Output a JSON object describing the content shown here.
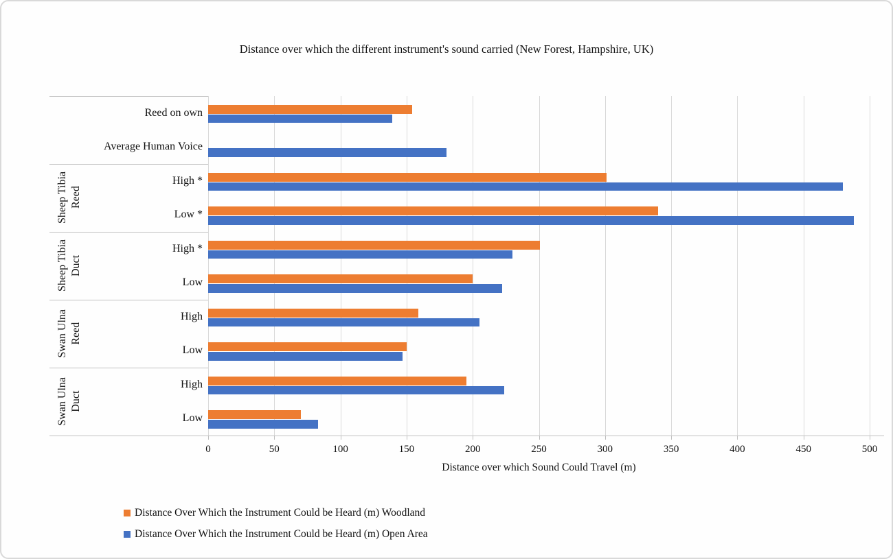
{
  "colors": {
    "woodland": "#ED7D31",
    "open_area": "#4472C4",
    "gridline": "#D9D9D9",
    "axis_line": "#BFBFBF",
    "text": "#111111"
  },
  "chart_data": {
    "type": "bar",
    "orientation": "horizontal",
    "title": "Distance over which the different instrument's sound carried (New Forest, Hampshire, UK)",
    "xlabel": "Distance over which Sound Could Travel (m)",
    "xlim": [
      0,
      500
    ],
    "xticks": [
      0,
      50,
      100,
      150,
      200,
      250,
      300,
      350,
      400,
      450,
      500
    ],
    "grid": true,
    "legend_position": "bottom-left",
    "categories": [
      "Reed on own",
      "Average Human Voice",
      "High *",
      "Low *",
      "High *",
      "Low",
      "High",
      "Low",
      "High",
      "Low"
    ],
    "groups": [
      {
        "label": "",
        "lines": [],
        "span": 2
      },
      {
        "label": "Sheep Tibia Reed",
        "lines": [
          "Sheep Tibia",
          "Reed"
        ],
        "span": 2
      },
      {
        "label": "Sheep Tibia Duct",
        "lines": [
          "Sheep Tibia",
          "Duct"
        ],
        "span": 2
      },
      {
        "label": "Swan Ulna Reed",
        "lines": [
          "Swan Ulna",
          "Reed"
        ],
        "span": 2
      },
      {
        "label": "Swan Ulna Duct",
        "lines": [
          "Swan Ulna",
          "Duct"
        ],
        "span": 2
      }
    ],
    "series": [
      {
        "name": "Distance Over Which the Instrument Could be Heard (m) Woodland",
        "color": "#ED7D31",
        "values": [
          154,
          null,
          301,
          340,
          251,
          200,
          159,
          150,
          195,
          70
        ]
      },
      {
        "name": "Distance Over Which the Instrument Could be Heard (m) Open Area",
        "color": "#4472C4",
        "values": [
          139,
          180,
          480,
          488,
          230,
          222,
          205,
          147,
          224,
          83
        ]
      }
    ]
  }
}
